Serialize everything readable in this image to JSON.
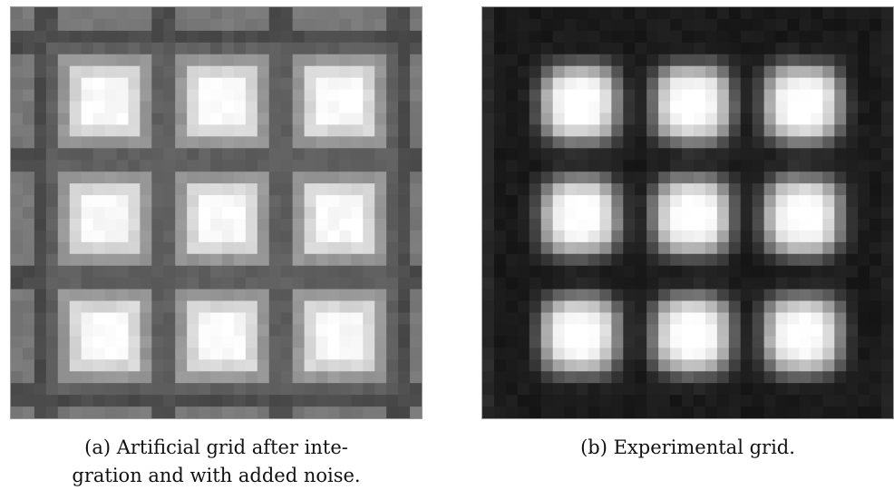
{
  "figure": {
    "subfigures": [
      {
        "id": "a",
        "caption": "(a) Artificial grid after inte-\ngration and with added noise.",
        "grid_rows": 3,
        "grid_cols": 3,
        "spot_shape": "square with graded halo",
        "background_tone": "#1b1b1b"
      },
      {
        "id": "b",
        "caption": "(b) Experimental grid.",
        "grid_rows": 3,
        "grid_cols": 3,
        "spot_shape": "rounded blurred spot",
        "background_tone": "#1c1c1c"
      }
    ]
  }
}
